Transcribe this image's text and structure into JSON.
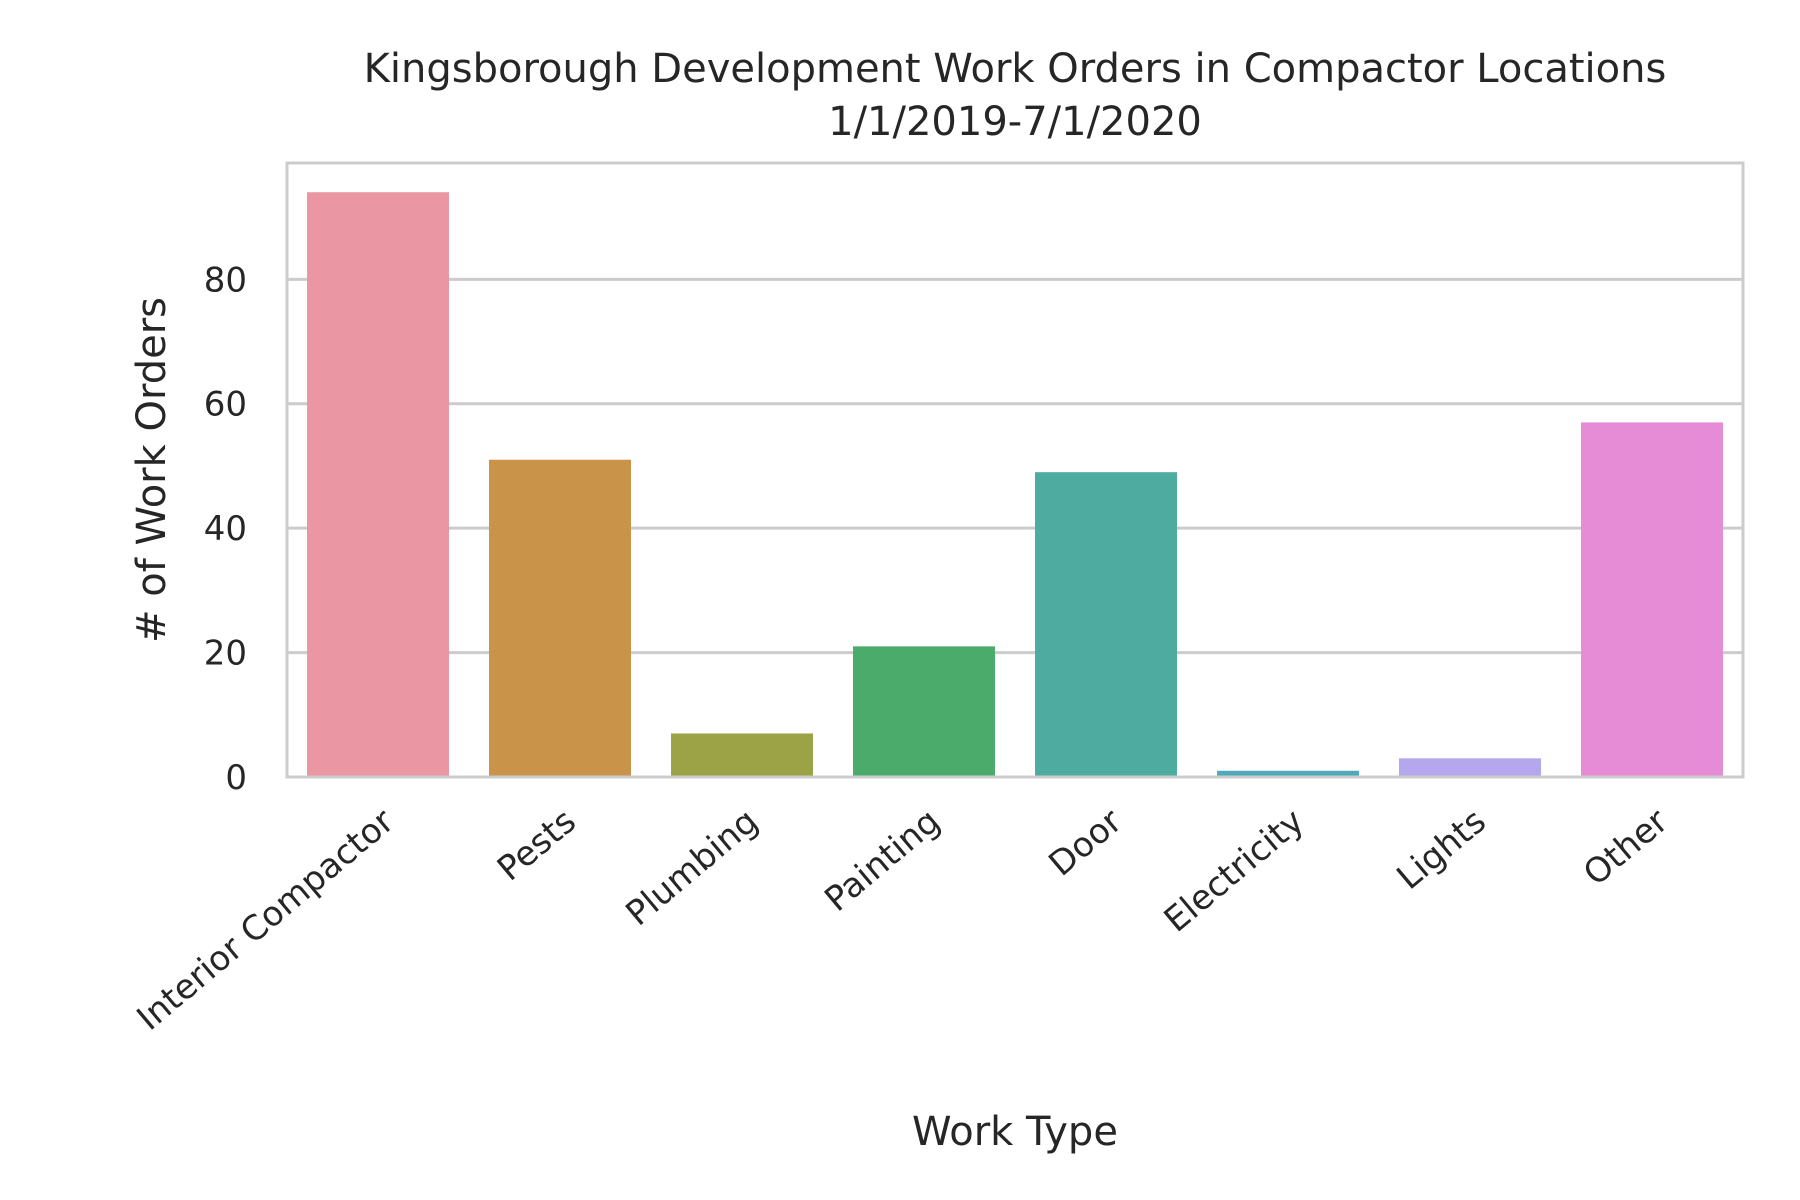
{
  "chart_data": {
    "type": "bar",
    "title": "Kingsborough Development Work Orders in Compactor Locations",
    "subtitle": "1/1/2019-7/1/2020",
    "xlabel": "Work Type",
    "ylabel": "# of Work Orders",
    "categories": [
      "Interior Compactor",
      "Pests",
      "Plumbing",
      "Painting",
      "Door",
      "Electricity",
      "Lights",
      "Other"
    ],
    "values": [
      94,
      51,
      7,
      21,
      49,
      1,
      3,
      57
    ],
    "colors": [
      "#ea96a3",
      "#c9934a",
      "#9ba346",
      "#4aab6a",
      "#4dab9f",
      "#4eaabb",
      "#b4a7ed",
      "#e68cd7"
    ],
    "yticks": [
      0,
      20,
      40,
      60,
      80
    ],
    "ylim": [
      0,
      98.7
    ],
    "grid": true,
    "legend": "none"
  }
}
